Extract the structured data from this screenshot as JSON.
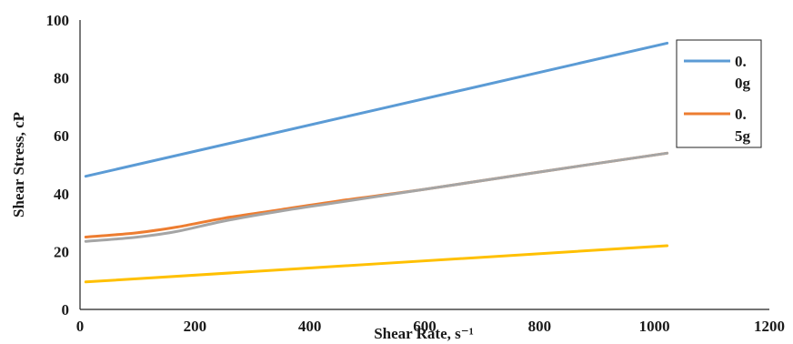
{
  "chart_data": {
    "type": "line",
    "title": "",
    "xlabel": "Shear Rate, s⁻¹",
    "ylabel": "Shear Stress, cP",
    "xlim": [
      0,
      1200
    ],
    "ylim": [
      0,
      100
    ],
    "xticks": [
      0,
      200,
      400,
      600,
      800,
      1000,
      1200
    ],
    "yticks": [
      0,
      20,
      40,
      60,
      80,
      100
    ],
    "grid": false,
    "legend_position": "right",
    "series": [
      {
        "name": "0. 0g",
        "legend_lines": [
          "0.",
          "0g"
        ],
        "color": "#5b9bd5",
        "x": [
          10,
          1022
        ],
        "y": [
          46,
          92
        ]
      },
      {
        "name": "0. 5g",
        "legend_lines": [
          "0.",
          "5g"
        ],
        "color": "#ed7d31",
        "x": [
          10,
          100,
          170,
          250,
          350,
          450,
          600,
          800,
          1022
        ],
        "y": [
          25,
          26.5,
          28.5,
          31.5,
          34.5,
          37.5,
          41.5,
          47.5,
          54
        ]
      },
      {
        "color": "#a5a5a5",
        "x": [
          10,
          100,
          170,
          250,
          350,
          450,
          600,
          800,
          1022
        ],
        "y": [
          23.5,
          25,
          27,
          30.5,
          34,
          37,
          41.5,
          47.5,
          54
        ]
      },
      {
        "color": "#ffc000",
        "x": [
          10,
          1022
        ],
        "y": [
          9.5,
          22
        ]
      }
    ]
  }
}
